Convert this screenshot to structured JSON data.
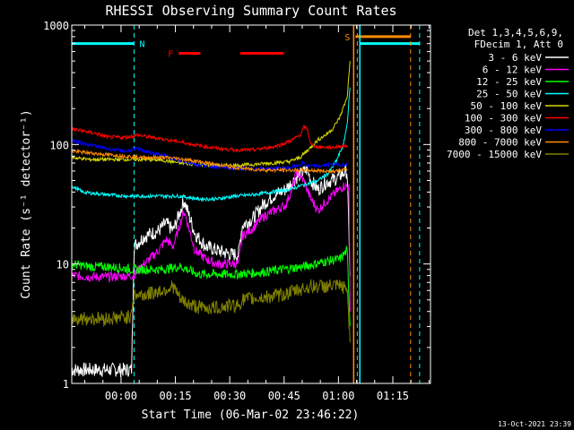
{
  "chart_data": {
    "type": "line",
    "title": "RHESSI Observing Summary Count Rates",
    "xlabel": "Start Time (06-Mar-02 23:46:22)",
    "ylabel": "Count Rate (s⁻¹ detector⁻¹)",
    "y_scale": "log",
    "ylim": [
      1,
      1000
    ],
    "xlim_minutes": [
      0,
      99
    ],
    "y_ticks": [
      "1",
      "10",
      "100",
      "1000"
    ],
    "x_ticks": [
      {
        "label": "00:00",
        "minute": 13.6
      },
      {
        "label": "00:15",
        "minute": 28.6
      },
      {
        "label": "00:30",
        "minute": 43.6
      },
      {
        "label": "00:45",
        "minute": 58.6
      },
      {
        "label": "01:00",
        "minute": 73.6
      },
      {
        "label": "01:15",
        "minute": 88.6
      }
    ],
    "legend_header": [
      "Det 1,3,4,5,6,9,",
      "FDecim 1, Att 0"
    ],
    "legend_position": "right",
    "timestamp": "13-Oct-2021 23:39",
    "flags": [
      {
        "label": "N",
        "color": "#00ffff",
        "level": 700,
        "segments": [
          [
            0,
            17.2
          ],
          [
            79.5,
            96
          ]
        ],
        "boundaries": [
          17.2,
          79.5,
          96
        ]
      },
      {
        "label": "S",
        "color": "#ff8c00",
        "level": 800,
        "segments": [
          [
            78.3,
            93.5
          ]
        ],
        "boundaries": [
          77.8,
          78.8,
          93.5
        ]
      },
      {
        "label": "F",
        "color": "#ff0000",
        "level": 580,
        "segments": [
          [
            29.5,
            35.5
          ],
          [
            46.5,
            58.5
          ]
        ],
        "boundaries": []
      }
    ],
    "series": [
      {
        "name": "3 - 6 keV",
        "color": "#ffffff",
        "points": [
          [
            0,
            1.3
          ],
          [
            5,
            1.3
          ],
          [
            10,
            1.3
          ],
          [
            16.5,
            1.3
          ],
          [
            17.2,
            14
          ],
          [
            20,
            17
          ],
          [
            24,
            19
          ],
          [
            26,
            22
          ],
          [
            28,
            19
          ],
          [
            31,
            34
          ],
          [
            34,
            18
          ],
          [
            37,
            14
          ],
          [
            40,
            13
          ],
          [
            44,
            12
          ],
          [
            46,
            12
          ],
          [
            47,
            21
          ],
          [
            50,
            24
          ],
          [
            53,
            32
          ],
          [
            56,
            38
          ],
          [
            59,
            42
          ],
          [
            62,
            53
          ],
          [
            65,
            62
          ],
          [
            66,
            50
          ],
          [
            68,
            42
          ],
          [
            70,
            48
          ],
          [
            73,
            52
          ],
          [
            75,
            58
          ],
          [
            76,
            60
          ],
          [
            76.8,
            8
          ]
        ]
      },
      {
        "name": "6 - 12 keV",
        "color": "#ff00ff",
        "points": [
          [
            0,
            8
          ],
          [
            5,
            7.8
          ],
          [
            10,
            7.8
          ],
          [
            17,
            8
          ],
          [
            20,
            10
          ],
          [
            24,
            13
          ],
          [
            26,
            16
          ],
          [
            28,
            14
          ],
          [
            31,
            28
          ],
          [
            34,
            13
          ],
          [
            37,
            11
          ],
          [
            40,
            10
          ],
          [
            44,
            10
          ],
          [
            46,
            10
          ],
          [
            47,
            17
          ],
          [
            50,
            20
          ],
          [
            53,
            25
          ],
          [
            56,
            28
          ],
          [
            59,
            31
          ],
          [
            61,
            44
          ],
          [
            62,
            60
          ],
          [
            64,
            50
          ],
          [
            66,
            35
          ],
          [
            68,
            28
          ],
          [
            70,
            33
          ],
          [
            73,
            40
          ],
          [
            75,
            45
          ],
          [
            76.5,
            44
          ],
          [
            76.8,
            4
          ]
        ]
      },
      {
        "name": "12 - 25 keV",
        "color": "#00ff00",
        "points": [
          [
            0,
            10
          ],
          [
            5,
            9.5
          ],
          [
            10,
            9.5
          ],
          [
            17,
            9
          ],
          [
            25,
            9
          ],
          [
            30,
            9.5
          ],
          [
            35,
            8.2
          ],
          [
            45,
            8.2
          ],
          [
            52,
            8.5
          ],
          [
            58,
            9
          ],
          [
            64,
            9.5
          ],
          [
            70,
            10.5
          ],
          [
            74,
            11
          ],
          [
            76,
            13
          ],
          [
            76.8,
            3
          ]
        ]
      },
      {
        "name": "25 - 50 keV",
        "color": "#00ffff",
        "points": [
          [
            0,
            45
          ],
          [
            3,
            40
          ],
          [
            6,
            39
          ],
          [
            10,
            38
          ],
          [
            15,
            37
          ],
          [
            20,
            37
          ],
          [
            25,
            37
          ],
          [
            30,
            37
          ],
          [
            35,
            35
          ],
          [
            40,
            35
          ],
          [
            45,
            37
          ],
          [
            50,
            38
          ],
          [
            55,
            40
          ],
          [
            60,
            42
          ],
          [
            65,
            47
          ],
          [
            68,
            50
          ],
          [
            71,
            58
          ],
          [
            73,
            73
          ],
          [
            75,
            100
          ],
          [
            76,
            150
          ],
          [
            76.8,
            300
          ]
        ]
      },
      {
        "name": "50 - 100 keV",
        "color": "#d8d800",
        "points": [
          [
            0,
            78
          ],
          [
            5,
            75
          ],
          [
            10,
            75
          ],
          [
            15,
            75
          ],
          [
            20,
            75
          ],
          [
            25,
            74
          ],
          [
            30,
            70
          ],
          [
            35,
            68
          ],
          [
            40,
            67
          ],
          [
            45,
            67
          ],
          [
            50,
            68
          ],
          [
            55,
            70
          ],
          [
            60,
            72
          ],
          [
            63,
            78
          ],
          [
            66,
            95
          ],
          [
            68,
            110
          ],
          [
            70,
            120
          ],
          [
            72,
            135
          ],
          [
            74,
            170
          ],
          [
            76,
            250
          ],
          [
            76.8,
            500
          ]
        ]
      },
      {
        "name": "100 - 300 keV",
        "color": "#ff0000",
        "points": [
          [
            0,
            135
          ],
          [
            3,
            130
          ],
          [
            6,
            125
          ],
          [
            10,
            115
          ],
          [
            15,
            115
          ],
          [
            18,
            120
          ],
          [
            22,
            115
          ],
          [
            26,
            110
          ],
          [
            30,
            105
          ],
          [
            35,
            98
          ],
          [
            40,
            93
          ],
          [
            45,
            90
          ],
          [
            50,
            90
          ],
          [
            55,
            95
          ],
          [
            58,
            100
          ],
          [
            61,
            110
          ],
          [
            63,
            120
          ],
          [
            64,
            140
          ],
          [
            65,
            135
          ],
          [
            66,
            100
          ],
          [
            68,
            95
          ],
          [
            72,
            95
          ],
          [
            76,
            98
          ]
        ]
      },
      {
        "name": "300 - 800 keV",
        "color": "#0000ff",
        "points": [
          [
            0,
            110
          ],
          [
            3,
            102
          ],
          [
            6,
            98
          ],
          [
            10,
            92
          ],
          [
            15,
            88
          ],
          [
            18,
            92
          ],
          [
            22,
            85
          ],
          [
            26,
            80
          ],
          [
            30,
            73
          ],
          [
            35,
            68
          ],
          [
            40,
            65
          ],
          [
            45,
            63
          ],
          [
            50,
            63
          ],
          [
            55,
            63
          ],
          [
            60,
            64
          ],
          [
            62,
            66
          ],
          [
            64,
            70
          ],
          [
            65,
            66
          ],
          [
            68,
            66
          ],
          [
            72,
            68
          ],
          [
            76,
            68
          ]
        ]
      },
      {
        "name": "800 - 7000 keV",
        "color": "#ff8c00",
        "points": [
          [
            0,
            88
          ],
          [
            5,
            85
          ],
          [
            10,
            82
          ],
          [
            15,
            80
          ],
          [
            20,
            78
          ],
          [
            25,
            78
          ],
          [
            30,
            76
          ],
          [
            35,
            72
          ],
          [
            40,
            68
          ],
          [
            45,
            64
          ],
          [
            50,
            62
          ],
          [
            55,
            61
          ],
          [
            60,
            61
          ],
          [
            65,
            61
          ],
          [
            70,
            60
          ],
          [
            73,
            60
          ],
          [
            76,
            62
          ]
        ]
      },
      {
        "name": "7000 - 15000 keV",
        "color": "#808000",
        "points": [
          [
            0,
            3.5
          ],
          [
            5,
            3.5
          ],
          [
            10,
            3.5
          ],
          [
            16,
            3.6
          ],
          [
            17.2,
            5.5
          ],
          [
            20,
            5.5
          ],
          [
            25,
            6
          ],
          [
            28,
            6.5
          ],
          [
            30,
            5
          ],
          [
            33,
            4.5
          ],
          [
            36,
            4.3
          ],
          [
            40,
            4.3
          ],
          [
            44,
            4.5
          ],
          [
            46,
            4.5
          ],
          [
            47,
            5
          ],
          [
            52,
            5.2
          ],
          [
            58,
            5.5
          ],
          [
            62,
            6
          ],
          [
            66,
            6.5
          ],
          [
            70,
            6.5
          ],
          [
            74,
            6.5
          ],
          [
            76,
            6.2
          ],
          [
            76.8,
            2.2
          ]
        ]
      }
    ]
  }
}
